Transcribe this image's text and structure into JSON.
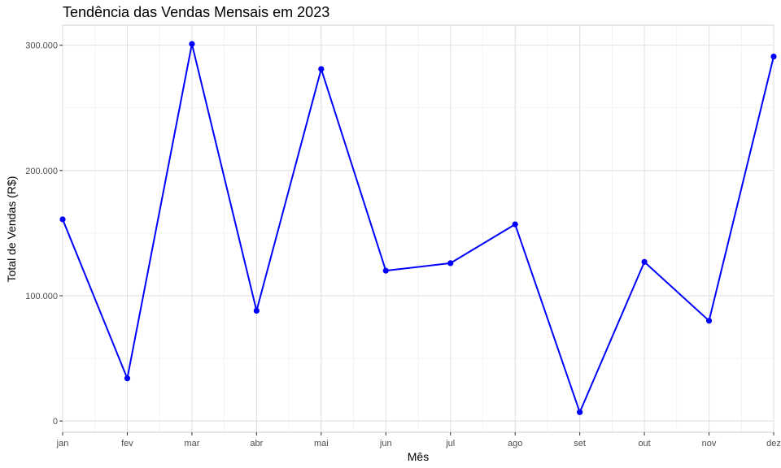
{
  "chart_data": {
    "type": "line",
    "title": "Tendência das Vendas Mensais em 2023",
    "xlabel": "Mês",
    "ylabel": "Total de Vendas (R$)",
    "categories": [
      "jan",
      "fev",
      "mar",
      "abr",
      "mai",
      "jun",
      "jul",
      "ago",
      "set",
      "out",
      "nov",
      "dez"
    ],
    "series": [
      {
        "values": [
          161000,
          34000,
          301000,
          88000,
          281000,
          120000,
          126000,
          157000,
          7000,
          127000,
          80000,
          291000
        ]
      }
    ],
    "ylim": [
      -9000,
      316000
    ],
    "yticks": [
      0,
      100000,
      200000,
      300000
    ],
    "ytick_labels": [
      "0",
      "100.000",
      "200.000",
      "300.000"
    ],
    "grid": true,
    "line_color": "#0000ff"
  }
}
